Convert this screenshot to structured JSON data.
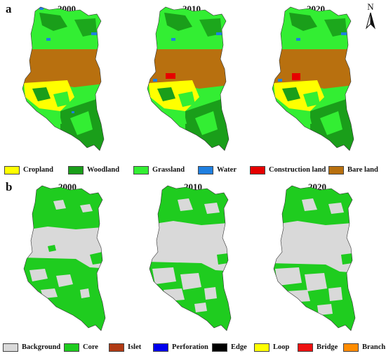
{
  "panel_a": {
    "letter": "a",
    "years": [
      "2000",
      "2010",
      "2020"
    ],
    "legend": [
      {
        "label": "Cropland",
        "color": "#ffff00"
      },
      {
        "label": "Woodland",
        "color": "#1a9e1a"
      },
      {
        "label": "Grassland",
        "color": "#33ee33"
      },
      {
        "label": "Water",
        "color": "#1f7fe0"
      },
      {
        "label": "Construction land",
        "color": "#e60000"
      },
      {
        "label": "Bare land",
        "color": "#b8700f"
      }
    ]
  },
  "panel_b": {
    "letter": "b",
    "years": [
      "2000",
      "2010",
      "2020"
    ],
    "legend": [
      {
        "label": "Background",
        "color": "#d9d9d9"
      },
      {
        "label": "Core",
        "color": "#1fcc1f"
      },
      {
        "label": "Islet",
        "color": "#b03a14"
      },
      {
        "label": "Perforation",
        "color": "#0000ee"
      },
      {
        "label": "Edge",
        "color": "#000000"
      },
      {
        "label": "Loop",
        "color": "#ffff00"
      },
      {
        "label": "Bridge",
        "color": "#ee1111"
      },
      {
        "label": "Branch",
        "color": "#ff8c00"
      }
    ]
  },
  "north_arrow": {
    "letter": "N"
  }
}
